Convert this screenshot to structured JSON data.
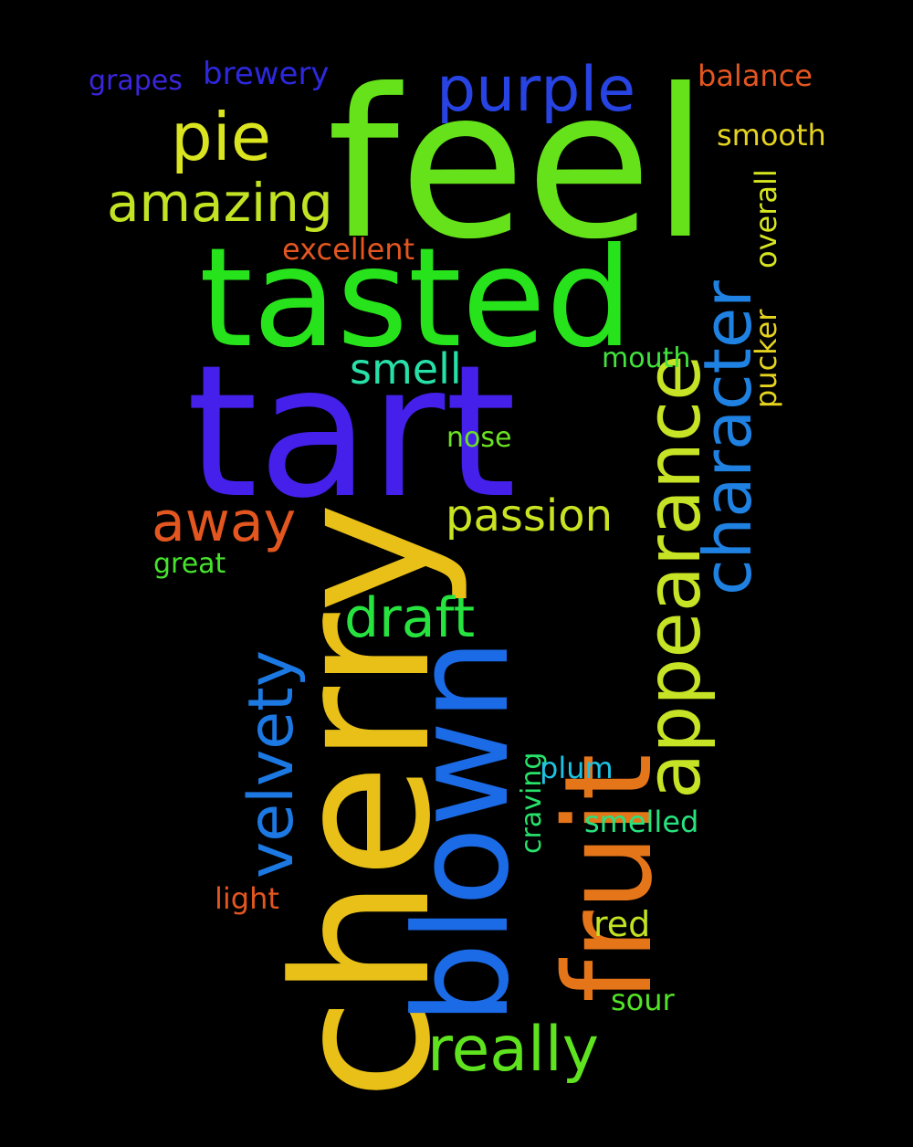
{
  "words": [
    {
      "text": "feel",
      "color": "#66e21a",
      "orientation": "horizontal"
    },
    {
      "text": "tasted",
      "color": "#27e31b",
      "orientation": "horizontal"
    },
    {
      "text": "tart",
      "color": "#4420ea",
      "orientation": "horizontal"
    },
    {
      "text": "cherry",
      "color": "#e8c018",
      "orientation": "vertical"
    },
    {
      "text": "blown",
      "color": "#1b6ae6",
      "orientation": "vertical"
    },
    {
      "text": "fruit",
      "color": "#e57519",
      "orientation": "vertical"
    },
    {
      "text": "appearance",
      "color": "#c7e325",
      "orientation": "vertical"
    },
    {
      "text": "character",
      "color": "#1f82e3",
      "orientation": "vertical"
    },
    {
      "text": "velvety",
      "color": "#1c79e3",
      "orientation": "vertical"
    },
    {
      "text": "purple",
      "color": "#2743e2",
      "orientation": "horizontal"
    },
    {
      "text": "pie",
      "color": "#dbe51f",
      "orientation": "horizontal"
    },
    {
      "text": "amazing",
      "color": "#c2e323",
      "orientation": "horizontal"
    },
    {
      "text": "away",
      "color": "#e3561f",
      "orientation": "horizontal"
    },
    {
      "text": "draft",
      "color": "#27e33f",
      "orientation": "horizontal"
    },
    {
      "text": "passion",
      "color": "#c9e322",
      "orientation": "horizontal"
    },
    {
      "text": "really",
      "color": "#5fe31f",
      "orientation": "horizontal"
    },
    {
      "text": "smell",
      "color": "#27e0a8",
      "orientation": "horizontal"
    },
    {
      "text": "brewery",
      "color": "#2d28df",
      "orientation": "horizontal"
    },
    {
      "text": "grapes",
      "color": "#3a26dc",
      "orientation": "horizontal"
    },
    {
      "text": "balance",
      "color": "#e3561f",
      "orientation": "horizontal"
    },
    {
      "text": "smooth",
      "color": "#e5d31f",
      "orientation": "horizontal"
    },
    {
      "text": "excellent",
      "color": "#e3561f",
      "orientation": "horizontal"
    },
    {
      "text": "overall",
      "color": "#d6e51f",
      "orientation": "vertical"
    },
    {
      "text": "pucker",
      "color": "#e5d31f",
      "orientation": "vertical"
    },
    {
      "text": "mouth",
      "color": "#42e33e",
      "orientation": "horizontal"
    },
    {
      "text": "nose",
      "color": "#6be322",
      "orientation": "horizontal"
    },
    {
      "text": "great",
      "color": "#45e32c",
      "orientation": "horizontal"
    },
    {
      "text": "craving",
      "color": "#27e36a",
      "orientation": "vertical"
    },
    {
      "text": "plum",
      "color": "#1ec2e3",
      "orientation": "horizontal"
    },
    {
      "text": "smelled",
      "color": "#27e37e",
      "orientation": "horizontal"
    },
    {
      "text": "light",
      "color": "#e3561f",
      "orientation": "horizontal"
    },
    {
      "text": "red",
      "color": "#c2e323",
      "orientation": "horizontal"
    },
    {
      "text": "sour",
      "color": "#53e327",
      "orientation": "horizontal"
    }
  ]
}
